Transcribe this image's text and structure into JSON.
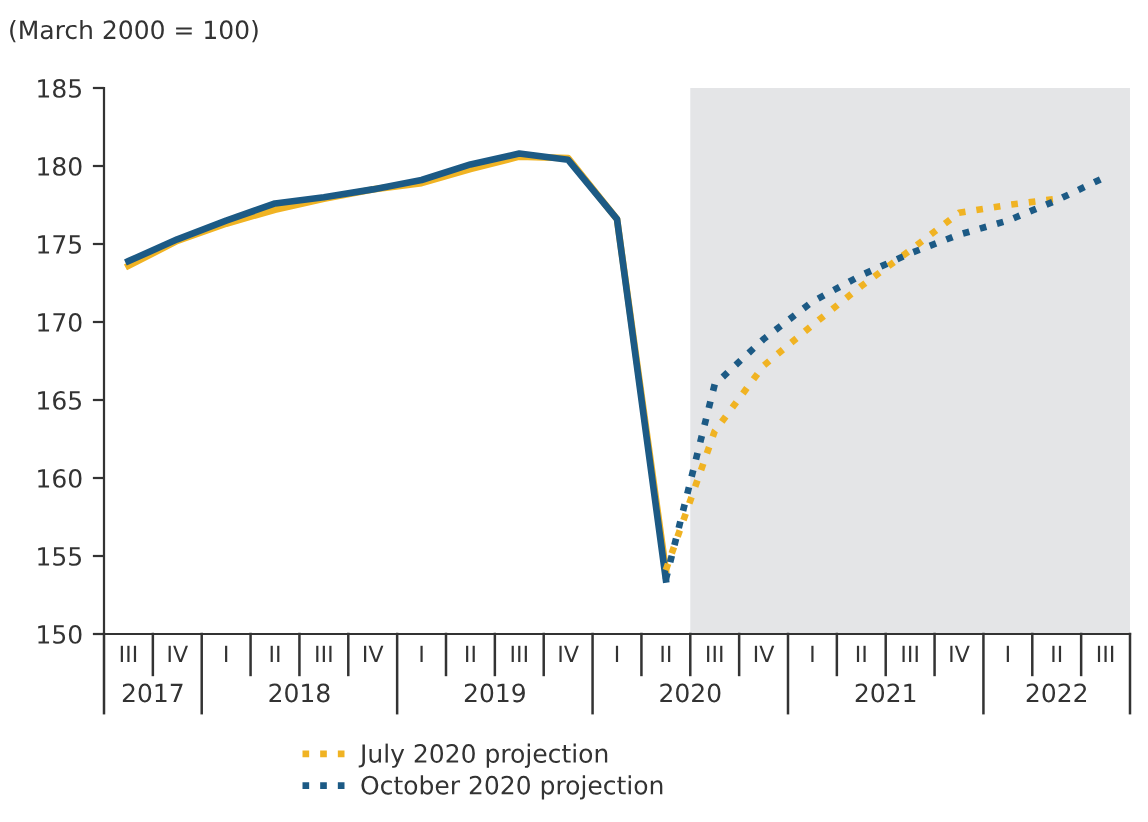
{
  "chart_data": {
    "type": "line",
    "ylabel": "(March 2000 = 100)",
    "categories": [
      "III",
      "IV",
      "I",
      "II",
      "III",
      "IV",
      "I",
      "II",
      "III",
      "IV",
      "I",
      "II",
      "III",
      "IV",
      "I",
      "II",
      "III",
      "IV",
      "I",
      "II",
      "III"
    ],
    "annotations": [
      "2017",
      "2018",
      "2019",
      "2020",
      "2021",
      "2022"
    ],
    "ylim": [
      150,
      185
    ],
    "yticks": [
      150,
      155,
      160,
      165,
      170,
      175,
      180,
      185
    ],
    "grid": false,
    "legend": "bottom",
    "marker": "none",
    "series": [
      {
        "color": "#f0b323",
        "line_style": "solid",
        "values": [
          173.6,
          175.2,
          176.3,
          177.2,
          177.9,
          178.5,
          178.9,
          179.8,
          180.6,
          180.5,
          176.6,
          154.1,
          null,
          null,
          null,
          null,
          null,
          null,
          null,
          null,
          null
        ]
      },
      {
        "color": "#1c5a85",
        "line_style": "solid",
        "values": [
          173.9,
          175.3,
          176.5,
          177.6,
          178.0,
          178.5,
          179.1,
          180.1,
          180.8,
          180.4,
          176.6,
          153.5,
          null,
          null,
          null,
          null,
          null,
          null,
          null,
          null,
          null
        ]
      },
      {
        "name": "July 2020 projection",
        "color": "#f0b323",
        "line_style": "dotted",
        "values": [
          null,
          null,
          null,
          null,
          null,
          null,
          null,
          null,
          null,
          null,
          null,
          154.1,
          163.0,
          167.2,
          169.8,
          172.3,
          174.6,
          177.0,
          177.5,
          177.9,
          null
        ]
      },
      {
        "name": "October 2020 projection",
        "color": "#1c5a85",
        "line_style": "dotted",
        "values": [
          null,
          null,
          null,
          null,
          null,
          null,
          null,
          null,
          null,
          null,
          null,
          153.5,
          166.0,
          168.9,
          171.3,
          173.0,
          174.4,
          175.6,
          176.5,
          177.8,
          179.3
        ]
      }
    ]
  }
}
